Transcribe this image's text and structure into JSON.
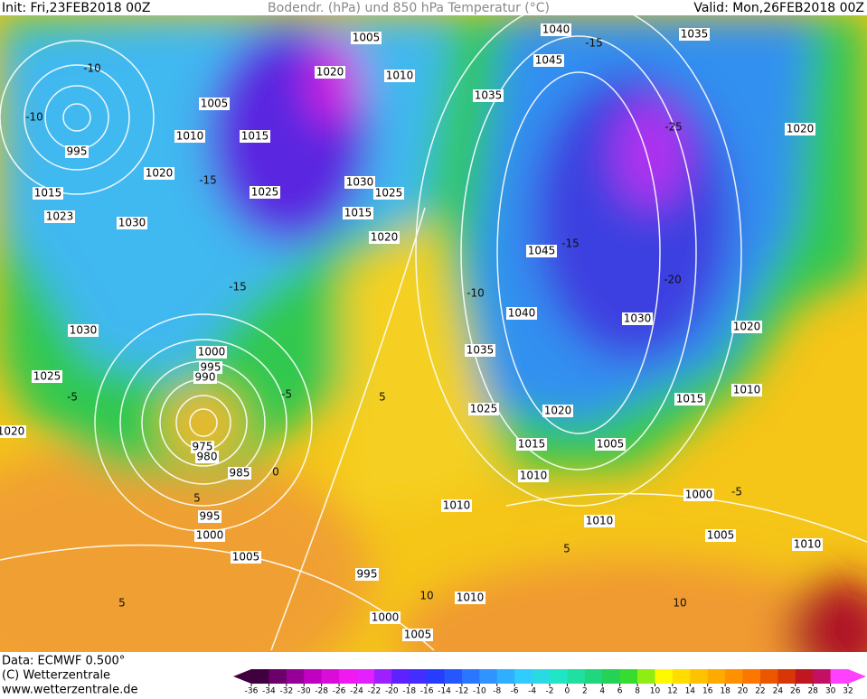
{
  "header": {
    "init": "Init: Fri,23FEB2018 00Z",
    "title": "Bodendr. (hPa) und 850 hPa Temperatur (°C)",
    "valid": "Valid: Mon,26FEB2018 00Z"
  },
  "footer": {
    "data": "Data: ECMWF  0.500°",
    "copyright": "(C) Wetterzentrale",
    "url": "www.wetterzentrale.de"
  },
  "legend": {
    "ticks": [
      -36,
      -34,
      -32,
      -30,
      -28,
      -26,
      -24,
      -22,
      -20,
      -18,
      -16,
      -14,
      -12,
      -10,
      -8,
      -6,
      -4,
      -2,
      0,
      2,
      4,
      6,
      8,
      10,
      12,
      14,
      16,
      18,
      20,
      22,
      24,
      26,
      28,
      30,
      32
    ]
  },
  "isobar_labels": [
    "1005",
    "1020",
    "1010",
    "1005",
    "1010",
    "1015",
    "995",
    "1020",
    "1015",
    "1025",
    "1030",
    "1025",
    "1015",
    "1020",
    "1023",
    "1030",
    "1040",
    "1045",
    "1035",
    "1035",
    "1020",
    "1045",
    "1040",
    "1030",
    "1020",
    "1035",
    "1030",
    "1025",
    "1000",
    "995",
    "990",
    "1025",
    "1020",
    "1015",
    "1010",
    "1015",
    "1005",
    "975",
    "980",
    "985",
    "1010",
    "1000",
    "1010",
    "1010",
    "995",
    "1000",
    "1005",
    "1010",
    "1005",
    "995",
    "1010",
    "1000",
    "1005",
    "1020"
  ],
  "temperature_labels": [
    "-10",
    "-10",
    "-15",
    "-25",
    "-15",
    "-15",
    "-10",
    "-15",
    "-20",
    "-5",
    "-5",
    "5",
    "0",
    "5",
    "-5",
    "5",
    "10",
    "10",
    "5"
  ]
}
